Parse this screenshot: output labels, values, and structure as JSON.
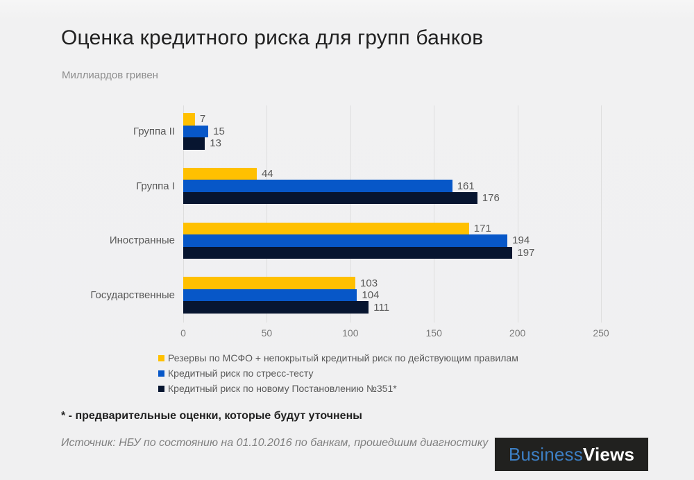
{
  "title": "Оценка кредитного риска для групп банков",
  "subtitle": "Миллиардов гривен",
  "chart_data": {
    "type": "bar",
    "orientation": "horizontal",
    "categories": [
      "Группа II",
      "Группа I",
      "Иностранные",
      "Государственные"
    ],
    "series": [
      {
        "name": "Резервы по МСФО + непокрытый кредитный риск по действующим  правилам",
        "color": "#FFC000",
        "values": [
          7,
          44,
          171,
          103
        ]
      },
      {
        "name": "Кредитный риск по стресс-тесту",
        "color": "#0757C8",
        "values": [
          15,
          161,
          194,
          104
        ]
      },
      {
        "name": "Кредитный риск по новому Постановлению  №351*",
        "color": "#071530",
        "values": [
          13,
          176,
          197,
          111
        ]
      }
    ],
    "x_ticks": [
      0,
      50,
      100,
      150,
      200,
      250
    ],
    "xlim": [
      0,
      250
    ],
    "grid": true,
    "legend_position": "bottom"
  },
  "footnote": "* - предварительные оценки, которые будут уточнены",
  "source": "Источник: НБУ по состоянию на 01.10.2016 по банкам, прошедшим диагностику",
  "logo": {
    "part1": "Business",
    "part2": "Views"
  }
}
